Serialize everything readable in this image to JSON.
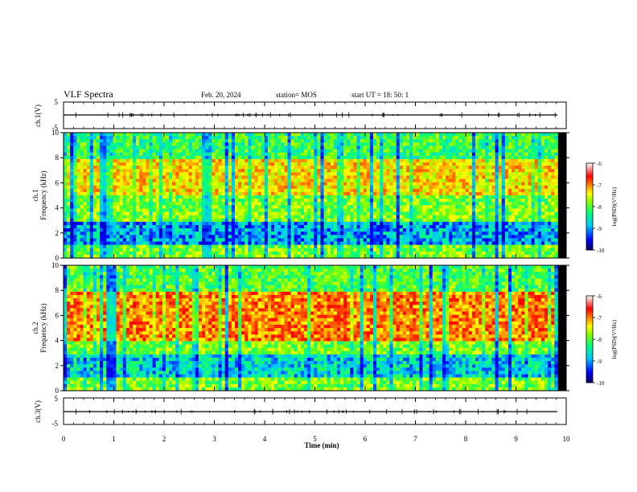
{
  "header": {
    "title": "VLF Spectra",
    "date": "Feb. 20, 2024",
    "station": "station= MOS",
    "start_ut": "start UT =  18: 50: 1"
  },
  "chart_data": [
    {
      "type": "line",
      "panel": "ch1-waveform",
      "ylabel": "ch.1(V)",
      "ytick_labels": [
        "5",
        "-5"
      ],
      "ylim": [
        -5,
        5
      ],
      "x": [
        0,
        9.83
      ],
      "values": [
        0,
        0
      ],
      "color": "#000000"
    },
    {
      "type": "heatmap",
      "panel": "ch1-spectrogram",
      "ylabel": "ch.1\nFrequency (kHz)",
      "ylim": [
        0,
        10
      ],
      "ytick_labels": [
        "0",
        "2",
        "4",
        "6",
        "8",
        "10"
      ],
      "xlim": [
        0,
        9.83
      ],
      "colorbar": {
        "label": "log(PSD)(V²/Hz)",
        "range": [
          -10,
          -6
        ],
        "tick_labels": [
          "-6",
          "-7",
          "-8",
          "-9",
          "-10"
        ]
      },
      "bands": [
        {
          "f_range": [
            0,
            1
          ],
          "log_psd": -8
        },
        {
          "f_range": [
            1,
            3
          ],
          "log_psd": -9
        },
        {
          "f_range": [
            3,
            5
          ],
          "log_psd": -8
        },
        {
          "f_range": [
            5,
            8
          ],
          "log_psd": -7.4
        },
        {
          "f_range": [
            8,
            10
          ],
          "log_psd": -8.3
        }
      ]
    },
    {
      "type": "heatmap",
      "panel": "ch2-spectrogram",
      "ylabel": "ch.2\nFrequency (kHz)",
      "ylim": [
        0,
        10
      ],
      "ytick_labels": [
        "0",
        "2",
        "4",
        "6",
        "8",
        "10"
      ],
      "xlim": [
        0,
        9.83
      ],
      "colorbar": {
        "label": "log(PSD)(V²/Hz)",
        "range": [
          -10,
          -6
        ],
        "tick_labels": [
          "-6",
          "-7",
          "-8",
          "-9",
          "-10"
        ]
      },
      "bands": [
        {
          "f_range": [
            0,
            1
          ],
          "log_psd": -8
        },
        {
          "f_range": [
            1,
            3
          ],
          "log_psd": -8.8
        },
        {
          "f_range": [
            3,
            4
          ],
          "log_psd": -8
        },
        {
          "f_range": [
            4,
            8
          ],
          "log_psd": -7
        },
        {
          "f_range": [
            8,
            10
          ],
          "log_psd": -8.2
        }
      ]
    },
    {
      "type": "line",
      "panel": "ch3-waveform",
      "ylabel": "ch.3(V)",
      "ytick_labels": [
        "5",
        "-5"
      ],
      "ylim": [
        -5,
        5
      ],
      "x": [
        0,
        9.83
      ],
      "values": [
        0,
        0
      ],
      "color": "#000000"
    }
  ],
  "x_axis": {
    "label": "Time  (min)",
    "tick_labels": [
      "0",
      "1",
      "2",
      "3",
      "4",
      "5",
      "6",
      "7",
      "8",
      "9",
      "10"
    ],
    "xlim": [
      0,
      10
    ]
  },
  "colors": {
    "scale": [
      "#000080",
      "#0000ff",
      "#00c8ff",
      "#00ff80",
      "#80ff00",
      "#ffff00",
      "#ff8000",
      "#ff0000",
      "#ffffff"
    ]
  }
}
